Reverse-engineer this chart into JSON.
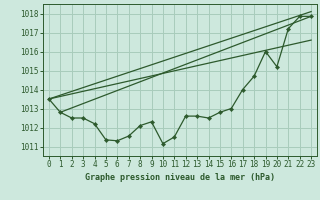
{
  "title": "Graphe pression niveau de la mer (hPa)",
  "background_color": "#cde8dd",
  "grid_color": "#a8ccbb",
  "line_color": "#2d5a2d",
  "xlim": [
    -0.5,
    23.5
  ],
  "ylim": [
    1010.5,
    1018.5
  ],
  "yticks": [
    1011,
    1012,
    1013,
    1014,
    1015,
    1016,
    1017,
    1018
  ],
  "xticks": [
    0,
    1,
    2,
    3,
    4,
    5,
    6,
    7,
    8,
    9,
    10,
    11,
    12,
    13,
    14,
    15,
    16,
    17,
    18,
    19,
    20,
    21,
    22,
    23
  ],
  "main_series_x": [
    0,
    1,
    2,
    3,
    4,
    5,
    6,
    7,
    8,
    9,
    10,
    11,
    12,
    13,
    14,
    15,
    16,
    17,
    18,
    19,
    20,
    21,
    22,
    23
  ],
  "main_series_y": [
    1013.5,
    1012.8,
    1012.5,
    1012.5,
    1012.2,
    1011.35,
    1011.3,
    1011.55,
    1012.1,
    1012.3,
    1011.15,
    1011.5,
    1012.6,
    1012.6,
    1012.5,
    1012.8,
    1013.0,
    1014.0,
    1014.7,
    1016.0,
    1015.2,
    1017.2,
    1017.85,
    1017.85
  ],
  "line1_x": [
    0,
    23
  ],
  "line1_y": [
    1013.5,
    1018.1
  ],
  "line2_x": [
    0,
    23
  ],
  "line2_y": [
    1013.5,
    1016.6
  ],
  "line3_x": [
    1,
    23
  ],
  "line3_y": [
    1012.8,
    1017.85
  ]
}
